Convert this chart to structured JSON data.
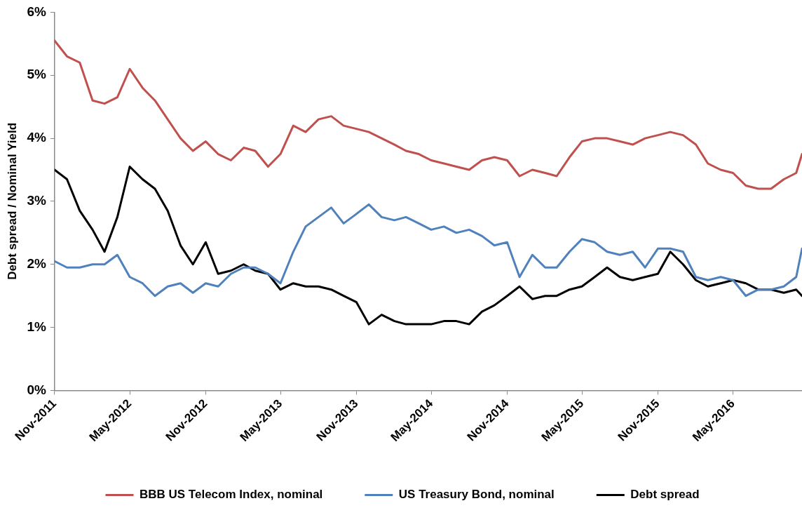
{
  "chart_data": {
    "type": "line",
    "ylabel": "Debt spread / Nominal Yield",
    "x": [
      "2011-11-01",
      "2011-12-01",
      "2012-01-01",
      "2012-02-01",
      "2012-03-01",
      "2012-04-01",
      "2012-05-01",
      "2012-06-01",
      "2012-07-01",
      "2012-08-01",
      "2012-09-01",
      "2012-10-01",
      "2012-11-01",
      "2012-12-01",
      "2013-01-01",
      "2013-02-01",
      "2013-03-01",
      "2013-04-01",
      "2013-05-01",
      "2013-06-01",
      "2013-07-01",
      "2013-08-01",
      "2013-09-01",
      "2013-10-01",
      "2013-11-01",
      "2013-12-01",
      "2014-01-01",
      "2014-02-01",
      "2014-03-01",
      "2014-04-01",
      "2014-05-01",
      "2014-06-01",
      "2014-07-01",
      "2014-08-01",
      "2014-09-01",
      "2014-10-01",
      "2014-11-01",
      "2014-12-01",
      "2015-01-01",
      "2015-02-01",
      "2015-03-01",
      "2015-04-01",
      "2015-05-01",
      "2015-06-01",
      "2015-07-01",
      "2015-08-01",
      "2015-09-01",
      "2015-10-01",
      "2015-11-01",
      "2015-12-01",
      "2016-01-01",
      "2016-02-01",
      "2016-03-01",
      "2016-04-01",
      "2016-05-01",
      "2016-06-01",
      "2016-07-01",
      "2016-08-01",
      "2016-09-01",
      "2016-10-01",
      "2016-10-15"
    ],
    "series": [
      {
        "name": "BBB US Telecom Index, nominal",
        "color": "#c0504d",
        "values": [
          5.55,
          5.3,
          5.2,
          4.6,
          4.55,
          4.65,
          5.1,
          4.8,
          4.6,
          4.3,
          4.0,
          3.8,
          3.95,
          3.75,
          3.65,
          3.85,
          3.8,
          3.55,
          3.75,
          4.2,
          4.1,
          4.3,
          4.35,
          4.2,
          4.15,
          4.1,
          4.0,
          3.9,
          3.8,
          3.75,
          3.65,
          3.6,
          3.55,
          3.5,
          3.65,
          3.7,
          3.65,
          3.4,
          3.5,
          3.45,
          3.4,
          3.7,
          3.95,
          4.0,
          4.0,
          3.95,
          3.9,
          4.0,
          4.05,
          4.1,
          4.05,
          3.9,
          3.6,
          3.5,
          3.45,
          3.25,
          3.2,
          3.2,
          3.35,
          3.45,
          3.75
        ]
      },
      {
        "name": "US Treasury Bond, nominal",
        "color": "#4f81bd",
        "values": [
          2.05,
          1.95,
          1.95,
          2.0,
          2.0,
          2.15,
          1.8,
          1.7,
          1.5,
          1.65,
          1.7,
          1.55,
          1.7,
          1.65,
          1.85,
          1.95,
          1.95,
          1.85,
          1.7,
          2.2,
          2.6,
          2.75,
          2.9,
          2.65,
          2.8,
          2.95,
          2.75,
          2.7,
          2.75,
          2.65,
          2.55,
          2.6,
          2.5,
          2.55,
          2.45,
          2.3,
          2.35,
          1.8,
          2.15,
          1.95,
          1.95,
          2.2,
          2.4,
          2.35,
          2.2,
          2.15,
          2.2,
          1.95,
          2.25,
          2.25,
          2.2,
          1.8,
          1.75,
          1.8,
          1.75,
          1.5,
          1.6,
          1.6,
          1.65,
          1.8,
          2.25
        ]
      },
      {
        "name": "Debt spread",
        "color": "#000000",
        "values": [
          3.5,
          3.35,
          2.85,
          2.55,
          2.2,
          2.75,
          3.55,
          3.35,
          3.2,
          2.85,
          2.3,
          2.0,
          2.35,
          1.85,
          1.9,
          2.0,
          1.9,
          1.85,
          1.6,
          1.7,
          1.65,
          1.65,
          1.6,
          1.5,
          1.4,
          1.05,
          1.2,
          1.1,
          1.05,
          1.05,
          1.05,
          1.1,
          1.1,
          1.05,
          1.25,
          1.35,
          1.5,
          1.65,
          1.45,
          1.5,
          1.5,
          1.6,
          1.65,
          1.8,
          1.95,
          1.8,
          1.75,
          1.8,
          1.85,
          2.2,
          2.0,
          1.75,
          1.65,
          1.7,
          1.75,
          1.7,
          1.6,
          1.6,
          1.55,
          1.6,
          1.5
        ]
      }
    ],
    "xlim": [
      "2011-11-01",
      "2016-10-15"
    ],
    "xticks": [
      {
        "value": "2011-11-01",
        "label": "Nov-2011"
      },
      {
        "value": "2012-05-01",
        "label": "May-2012"
      },
      {
        "value": "2012-11-01",
        "label": "Nov-2012"
      },
      {
        "value": "2013-05-01",
        "label": "May-2013"
      },
      {
        "value": "2013-11-01",
        "label": "Nov-2013"
      },
      {
        "value": "2014-05-01",
        "label": "May-2014"
      },
      {
        "value": "2014-11-01",
        "label": "Nov-2014"
      },
      {
        "value": "2015-05-01",
        "label": "May-2015"
      },
      {
        "value": "2015-11-01",
        "label": "Nov-2015"
      },
      {
        "value": "2016-05-01",
        "label": "May-2016"
      }
    ],
    "ylim": [
      0,
      6
    ],
    "yticks": [
      {
        "value": 0,
        "label": "0%"
      },
      {
        "value": 1,
        "label": "1%"
      },
      {
        "value": 2,
        "label": "2%"
      },
      {
        "value": 3,
        "label": "3%"
      },
      {
        "value": 4,
        "label": "4%"
      },
      {
        "value": 5,
        "label": "5%"
      },
      {
        "value": 6,
        "label": "6%"
      }
    ],
    "grid": false,
    "legend": "bottom",
    "marker": "none",
    "line_style": "solid"
  }
}
